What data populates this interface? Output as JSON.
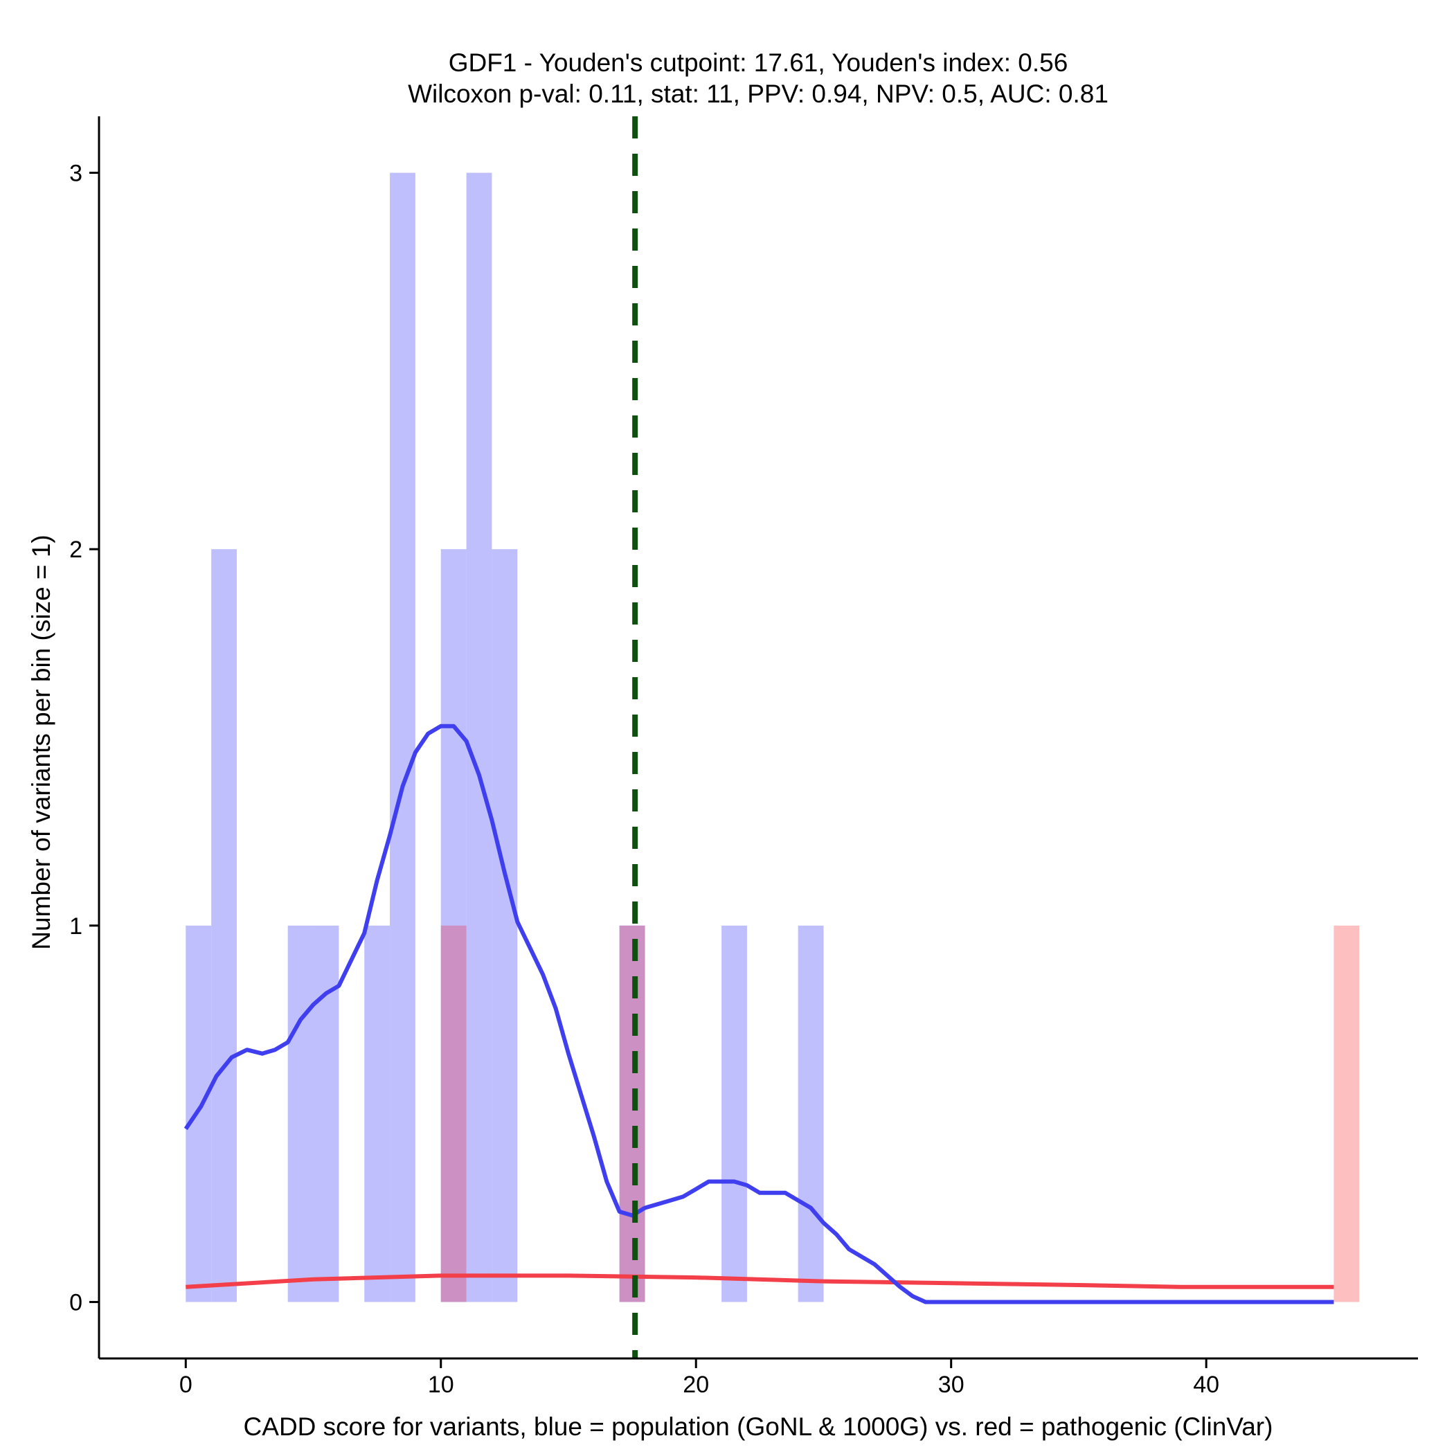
{
  "chart_data": {
    "type": "bar",
    "title": "GDF1 - Youden's cutpoint: 17.61, Youden's index: 0.56",
    "subtitle": "Wilcoxon p-val: 0.11, stat: 11, PPV: 0.94, NPV: 0.5, AUC: 0.81",
    "xlabel": "CADD score for variants, blue = population (GoNL & 1000G) vs. red = pathogenic (ClinVar)",
    "ylabel": "Number of variants per bin (size = 1)",
    "xlim": [
      -3.4,
      48.3
    ],
    "ylim": [
      -0.15,
      3.15
    ],
    "x_ticks": [
      0,
      10,
      20,
      30,
      40
    ],
    "y_ticks": [
      0,
      1,
      2,
      3
    ],
    "bin_width": 1,
    "cutpoint": 17.61,
    "colors": {
      "population_bar": "#bfbffd",
      "pathogenic_bar": "#fdbfbf",
      "overlap_bar": "#cc90c3",
      "population_line": "#3f3ff0",
      "pathogenic_line": "#f23f4a",
      "cutpoint_line": "#0f4f0f"
    },
    "series": [
      {
        "name": "population (GoNL & 1000G)",
        "bins": [
          {
            "x": 0,
            "count": 1
          },
          {
            "x": 1,
            "count": 2
          },
          {
            "x": 4,
            "count": 1
          },
          {
            "x": 5,
            "count": 1
          },
          {
            "x": 7,
            "count": 1
          },
          {
            "x": 8,
            "count": 3
          },
          {
            "x": 10,
            "count": 2
          },
          {
            "x": 11,
            "count": 3
          },
          {
            "x": 12,
            "count": 2
          },
          {
            "x": 17,
            "count": 1
          },
          {
            "x": 21,
            "count": 1
          },
          {
            "x": 24,
            "count": 1
          }
        ],
        "density_curve": [
          [
            0,
            0.46
          ],
          [
            0.6,
            0.52
          ],
          [
            1.2,
            0.6
          ],
          [
            1.8,
            0.65
          ],
          [
            2.4,
            0.67
          ],
          [
            3.0,
            0.66
          ],
          [
            3.5,
            0.67
          ],
          [
            4.0,
            0.69
          ],
          [
            4.5,
            0.75
          ],
          [
            5.0,
            0.79
          ],
          [
            5.5,
            0.82
          ],
          [
            6.0,
            0.84
          ],
          [
            6.5,
            0.91
          ],
          [
            7.0,
            0.98
          ],
          [
            7.5,
            1.12
          ],
          [
            8.0,
            1.24
          ],
          [
            8.5,
            1.37
          ],
          [
            9.0,
            1.46
          ],
          [
            9.5,
            1.51
          ],
          [
            10.0,
            1.53
          ],
          [
            10.5,
            1.53
          ],
          [
            11.0,
            1.49
          ],
          [
            11.5,
            1.4
          ],
          [
            12.0,
            1.28
          ],
          [
            12.5,
            1.14
          ],
          [
            13.0,
            1.01
          ],
          [
            13.5,
            0.94
          ],
          [
            14.0,
            0.87
          ],
          [
            14.5,
            0.78
          ],
          [
            15.0,
            0.66
          ],
          [
            15.5,
            0.55
          ],
          [
            16.0,
            0.44
          ],
          [
            16.5,
            0.32
          ],
          [
            17.0,
            0.24
          ],
          [
            17.5,
            0.23
          ],
          [
            18.0,
            0.25
          ],
          [
            18.5,
            0.26
          ],
          [
            19.0,
            0.27
          ],
          [
            19.5,
            0.28
          ],
          [
            20.0,
            0.3
          ],
          [
            20.5,
            0.32
          ],
          [
            21.0,
            0.32
          ],
          [
            21.5,
            0.32
          ],
          [
            22.0,
            0.31
          ],
          [
            22.5,
            0.29
          ],
          [
            23.0,
            0.29
          ],
          [
            23.5,
            0.29
          ],
          [
            24.0,
            0.27
          ],
          [
            24.5,
            0.25
          ],
          [
            25.0,
            0.21
          ],
          [
            25.5,
            0.18
          ],
          [
            26.0,
            0.14
          ],
          [
            26.5,
            0.12
          ],
          [
            27.0,
            0.1
          ],
          [
            27.5,
            0.07
          ],
          [
            28.0,
            0.04
          ],
          [
            28.5,
            0.015
          ],
          [
            29.0,
            0.0
          ],
          [
            45.0,
            0.0
          ]
        ]
      },
      {
        "name": "pathogenic (ClinVar)",
        "bins": [
          {
            "x": 10,
            "count": 1
          },
          {
            "x": 17,
            "count": 1
          },
          {
            "x": 45,
            "count": 1
          }
        ],
        "density_curve": [
          [
            0,
            0.04
          ],
          [
            5,
            0.06
          ],
          [
            10,
            0.07
          ],
          [
            15,
            0.07
          ],
          [
            20,
            0.065
          ],
          [
            25,
            0.055
          ],
          [
            30,
            0.05
          ],
          [
            35,
            0.045
          ],
          [
            39,
            0.04
          ],
          [
            45,
            0.04
          ]
        ]
      }
    ]
  }
}
